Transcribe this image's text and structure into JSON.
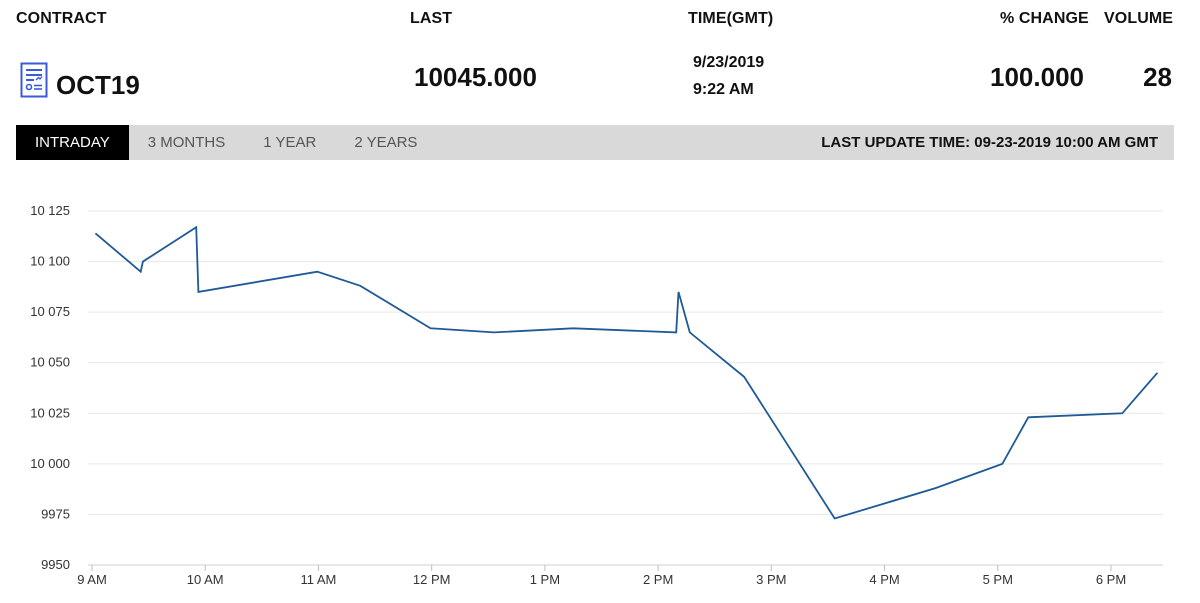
{
  "header": {
    "contract_label": "CONTRACT",
    "last_label": "LAST",
    "time_label": "TIME(GMT)",
    "change_label": "% CHANGE",
    "volume_label": "VOLUME"
  },
  "quote": {
    "contract_icon": "report-document-icon",
    "contract": "OCT19",
    "last": "10045.000",
    "date": "9/23/2019",
    "time": "9:22 AM",
    "change": "100.000",
    "volume": "28"
  },
  "tabs": [
    {
      "label": "INTRADAY",
      "active": true
    },
    {
      "label": "3 MONTHS",
      "active": false
    },
    {
      "label": "1 YEAR",
      "active": false
    },
    {
      "label": "2 YEARS",
      "active": false
    }
  ],
  "last_update": "LAST UPDATE TIME: 09-23-2019 10:00 AM GMT",
  "colors": {
    "line": "#1f5a96",
    "icon": "#3a5bd9",
    "tabbar": "#d9d9d9",
    "active_tab": "#000000",
    "grid": "#e6e6e6"
  },
  "chart_data": {
    "type": "line",
    "title": "",
    "xlabel": "",
    "ylabel": "",
    "yticks": [
      "10 125",
      "10 100",
      "10 075",
      "10 050",
      "10 025",
      "10 000",
      "9975",
      "9950"
    ],
    "ytick_values": [
      10125,
      10100,
      10075,
      10050,
      10025,
      10000,
      9975,
      9950
    ],
    "xticks": [
      "9 AM",
      "10 AM",
      "11 AM",
      "12 PM",
      "1 PM",
      "2 PM",
      "3 PM",
      "4 PM",
      "5 PM",
      "6 PM"
    ],
    "xtick_hours": [
      9,
      10,
      11,
      12,
      13,
      14,
      15,
      16,
      17,
      18
    ],
    "ylim": [
      9950,
      10125
    ],
    "xlim_hours": [
      8.95,
      19.45
    ],
    "grid": true,
    "series": [
      {
        "x_hours": [
          9.03,
          9.43,
          9.45,
          9.92,
          9.94,
          10.99,
          11.37,
          11.99,
          12.55,
          13.25,
          14.16,
          14.18,
          14.28,
          14.76,
          15.56,
          16.45,
          17.04,
          17.27,
          18.1,
          18.41
        ],
        "values": [
          10114,
          10095,
          10100,
          10117,
          10085,
          10095,
          10088,
          10067,
          10065,
          10067,
          10065,
          10085,
          10065,
          10043,
          9973,
          9988,
          10000,
          10023,
          10025,
          10045
        ]
      }
    ]
  }
}
